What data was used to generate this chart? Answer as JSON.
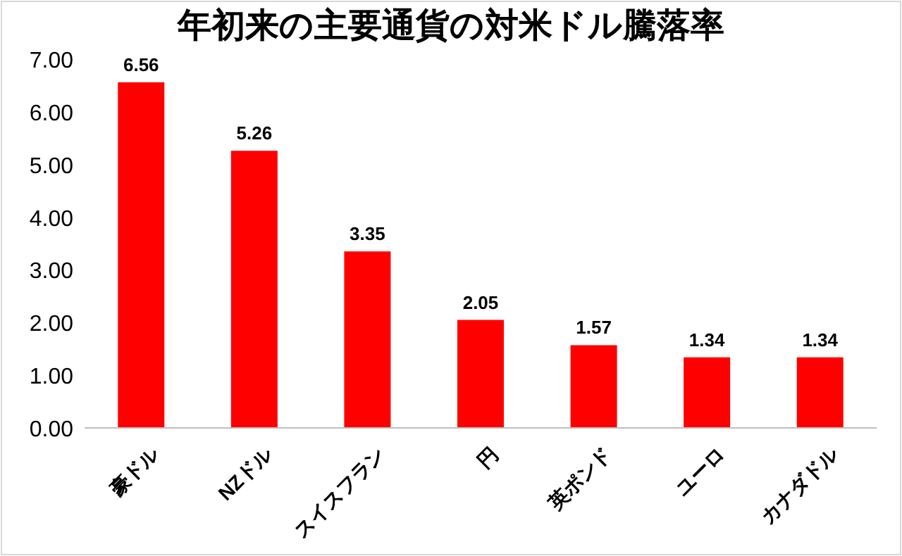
{
  "chart_data": {
    "type": "bar",
    "title": "年初来の主要通貨の対米ドル騰落率",
    "categories": [
      "豪ドル",
      "NZドル",
      "スイスフラン",
      "円",
      "英ポンド",
      "ユーロ",
      "カナダドル"
    ],
    "values": [
      6.56,
      5.26,
      3.35,
      2.05,
      1.57,
      1.34,
      1.34
    ],
    "color": "#ff0000",
    "ylim": [
      0,
      7
    ],
    "yticks": [
      {
        "value": 0,
        "label": "0.00"
      },
      {
        "value": 1,
        "label": "1.00"
      },
      {
        "value": 2,
        "label": "2.00"
      },
      {
        "value": 3,
        "label": "3.00"
      },
      {
        "value": 4,
        "label": "4.00"
      },
      {
        "value": 5,
        "label": "5.00"
      },
      {
        "value": 6,
        "label": "6.00"
      },
      {
        "value": 7,
        "label": "7.00"
      }
    ],
    "data_labels": true,
    "grid": false
  }
}
